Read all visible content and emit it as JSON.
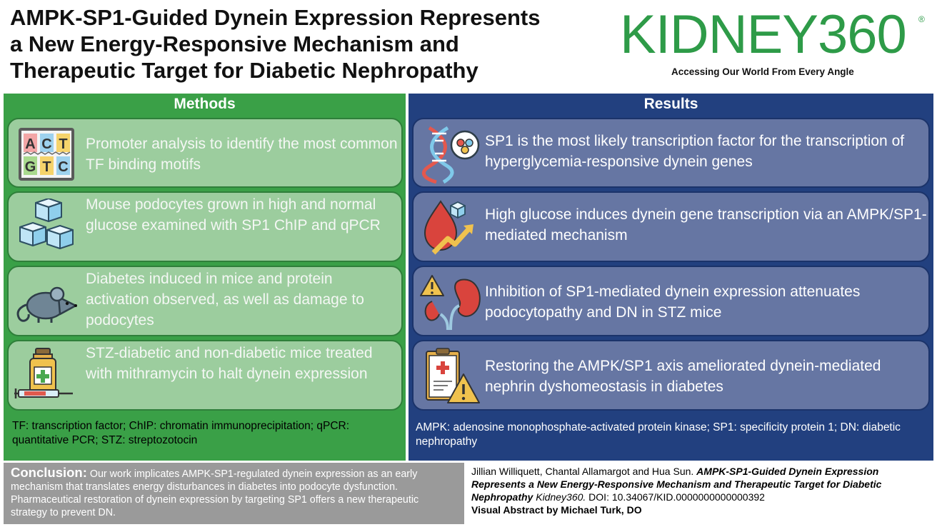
{
  "title": {
    "line1": "AMPK-SP1-Guided Dynein Expression Represents",
    "line2": "a New Energy-Responsive Mechanism and",
    "line3": "Therapeutic Target for Diabetic Nephropathy"
  },
  "logo": {
    "name": "KIDNEY360",
    "registered": "®",
    "tagline": "Accessing Our World From Every Angle",
    "color": "#2e9b48"
  },
  "methods": {
    "header": "Methods",
    "items": [
      {
        "icon": "dna-sequence-icon",
        "text": "Promoter analysis to identify the most common TF binding motifs",
        "letters": [
          "A",
          "C",
          "T",
          "G",
          "T",
          "C"
        ]
      },
      {
        "icon": "glucose-cubes-icon",
        "text": "Mouse podocytes grown in high and normal glucose examined with SP1 ChIP and qPCR"
      },
      {
        "icon": "mouse-icon",
        "text": "Diabetes induced in mice and protein activation observed, as well as damage to podocytes"
      },
      {
        "icon": "medicine-vial-syringe-icon",
        "text": "STZ-diabetic and non-diabetic mice treated with mithramycin to halt dynein expression"
      }
    ],
    "footnote": "TF: transcription factor; ChIP: chromatin immunoprecipitation; qPCR: quantitative PCR; STZ: streptozotocin",
    "colors": {
      "panel": "#3aa047",
      "card": "#9ccd9e"
    }
  },
  "results": {
    "header": "Results",
    "items": [
      {
        "icon": "dna-molecule-icon",
        "text": "SP1 is the most likely transcription factor for the transcription of hyperglycemia-responsive dynein genes"
      },
      {
        "icon": "blood-sugar-rise-icon",
        "text": "High glucose induces dynein gene transcription via an AMPK/SP1-mediated mechanism"
      },
      {
        "icon": "kidney-warning-icon",
        "text": "Inhibition of SP1-mediated dynein expression attenuates podocytopathy and DN in STZ mice"
      },
      {
        "icon": "medical-report-warning-icon",
        "text": "Restoring the AMPK/SP1 axis ameliorated dynein-mediated nephrin dyshomeostasis in diabetes"
      }
    ],
    "footnote": "AMPK: adenosine monophosphate-activated protein kinase; SP1: specificity protein 1; DN: diabetic nephropathy",
    "colors": {
      "panel": "#22407f",
      "card": "#6676a3"
    }
  },
  "conclusion": {
    "label": "Conclusion:",
    "text": " Our work implicates AMPK-SP1-regulated dynein expression as an early mechanism that translates energy disturbances in diabetes into podocyte dysfunction. Pharmaceutical restoration of dynein expression by targeting SP1 offers a new therapeutic strategy to prevent DN."
  },
  "citation": {
    "authors": "Jillian Williquett, Chantal Allamargot and Hua Sun. ",
    "article_title": "AMPK-SP1-Guided Dynein Expression Represents a New Energy-Responsive Mechanism and Therapeutic Target for Diabetic Nephropathy",
    "journal": " Kidney360.",
    "doi": " DOI: 10.34067/KID.0000000000000392",
    "visual_abstract": "Visual Abstract by Michael Turk, DO"
  }
}
